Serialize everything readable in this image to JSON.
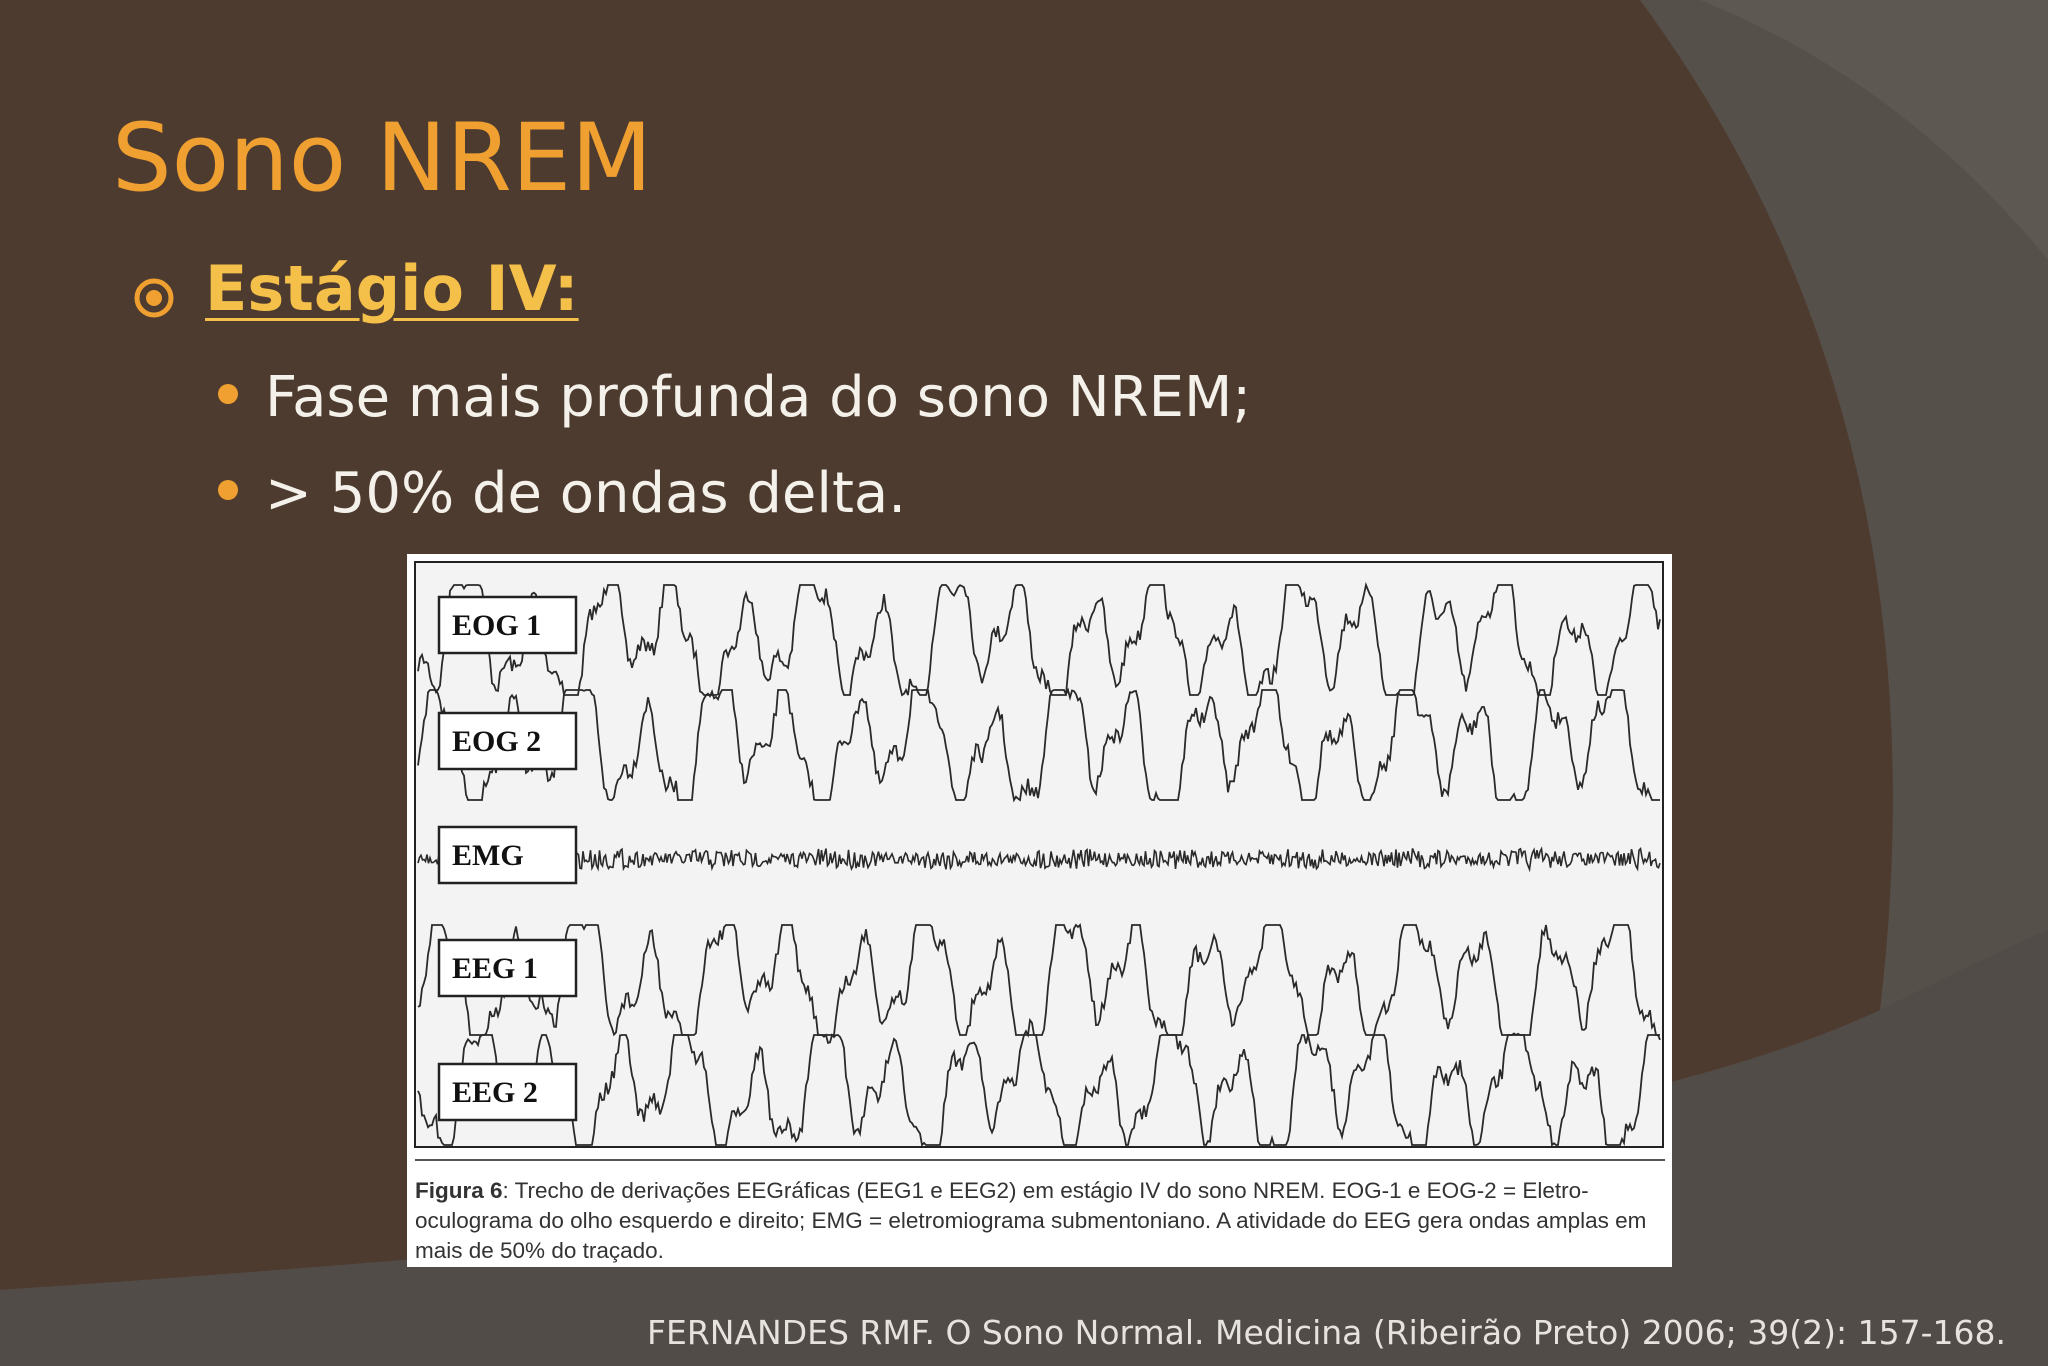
{
  "title": "Sono NREM",
  "subtitle": "Estágio IV:",
  "bullets": [
    "Fase mais profunda do sono NREM;",
    "> 50% de ondas delta."
  ],
  "figure": {
    "traces": [
      "EOG 1",
      "EOG 2",
      "EMG",
      "EEG 1",
      "EEG 2"
    ],
    "caption": {
      "label": "Figura 6",
      "text": ": Trecho de derivações EEGráficas (EEG1 e EEG2) em estágio IV do sono NREM. EOG-1 e EOG-2 = Eletro-oculograma do olho esquerdo e direito; EMG = eletromiograma submentoniano. A atividade do EEG gera ondas amplas em mais de 50% do traçado."
    }
  },
  "reference": "FERNANDES RMF. O Sono Normal. Medicina (Ribeirão Preto) 2006; 39(2): 157-168."
}
